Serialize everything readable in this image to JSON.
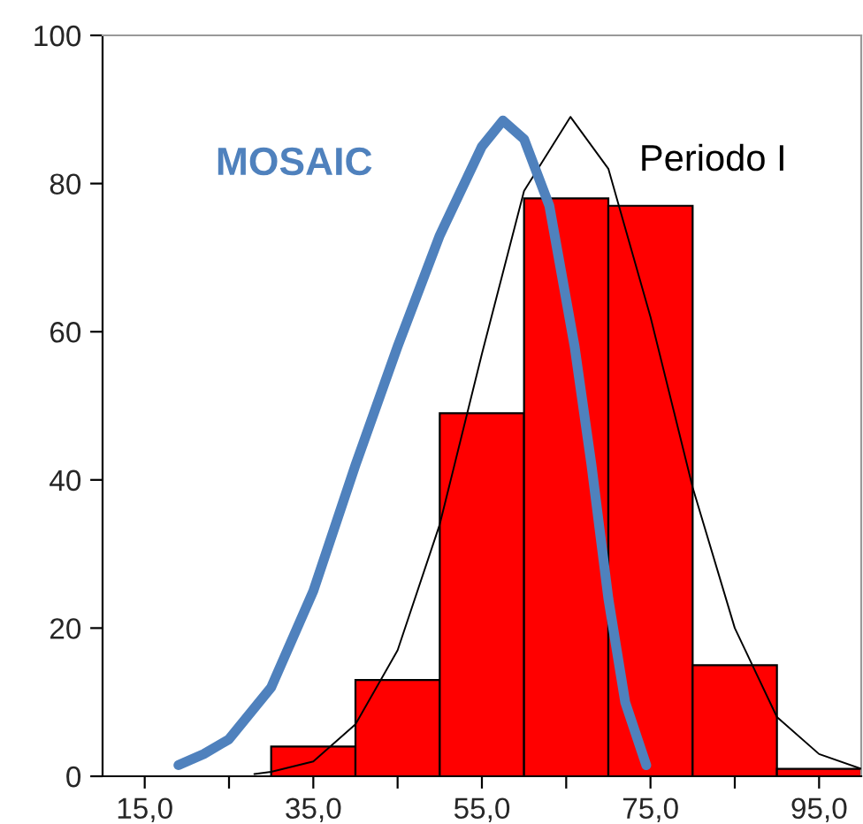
{
  "chart_data": {
    "type": "histogram",
    "bins": [
      30,
      40,
      50,
      60,
      70,
      80,
      90,
      100
    ],
    "values": [
      4,
      13,
      49,
      78,
      77,
      15,
      1
    ],
    "color": "#ff0000",
    "series": [
      {
        "name": "MOSAIC",
        "type": "line",
        "color": "#4f81bd",
        "x": [
          19,
          22,
          25,
          30,
          35,
          40,
          45,
          50,
          55,
          57.5,
          60,
          63,
          66,
          68,
          70,
          72,
          74.5
        ],
        "values": [
          1.5,
          3,
          5,
          12,
          25,
          42,
          58,
          73,
          85,
          88.5,
          86,
          77,
          58,
          42,
          24,
          10,
          1.5
        ]
      },
      {
        "name": "Periodo I",
        "type": "line",
        "color": "#000000",
        "x": [
          28,
          30,
          35,
          40,
          45,
          50,
          55,
          60,
          65.5,
          70,
          75,
          80,
          85,
          90,
          95,
          100
        ],
        "values": [
          0.3,
          0.6,
          2,
          7,
          17,
          34,
          57,
          79,
          89,
          82,
          62,
          39,
          20,
          8,
          3,
          1
        ]
      }
    ],
    "xlim": [
      10,
      100
    ],
    "ylim": [
      0,
      100
    ],
    "xticks": [
      {
        "value": 15,
        "label": "15,0"
      },
      {
        "value": 25,
        "label": null
      },
      {
        "value": 35,
        "label": "35,0"
      },
      {
        "value": 45,
        "label": null
      },
      {
        "value": 55,
        "label": "55,0"
      },
      {
        "value": 65,
        "label": null
      },
      {
        "value": 75,
        "label": "75,0"
      },
      {
        "value": 85,
        "label": null
      },
      {
        "value": 95,
        "label": "95,0"
      }
    ],
    "yticks": [
      0,
      20,
      40,
      60,
      80,
      100
    ],
    "grid": false,
    "legend": false
  }
}
